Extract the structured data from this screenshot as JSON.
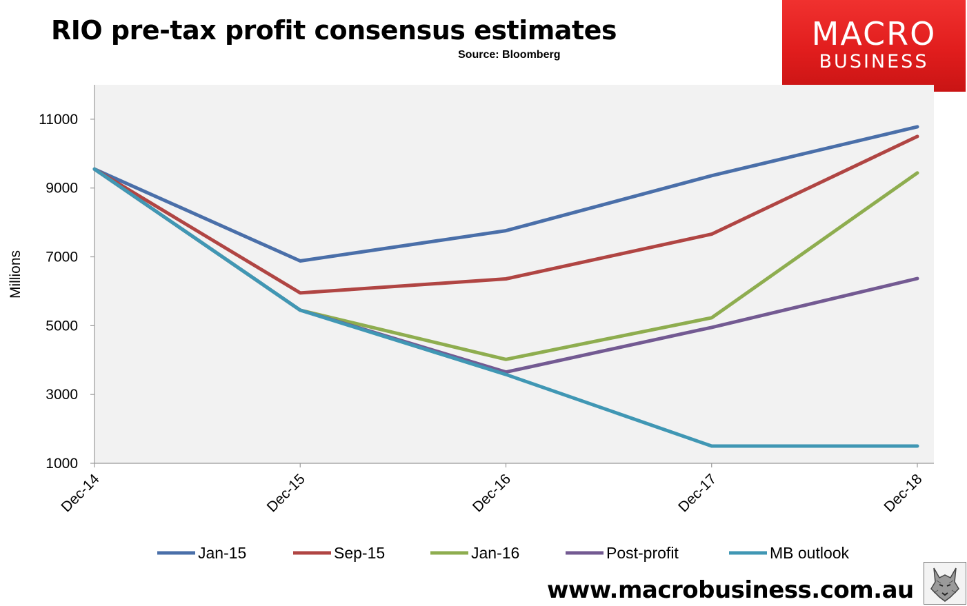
{
  "header": {
    "title": "RIO pre-tax profit consensus estimates",
    "source": "Source: Bloomberg"
  },
  "logo": {
    "line1": "MACRO",
    "line2": "BUSINESS"
  },
  "footer": {
    "url": "www.macrobusiness.com.au"
  },
  "chart_data": {
    "type": "line",
    "title": "RIO pre-tax profit consensus estimates",
    "xlabel": "",
    "ylabel": "Millions",
    "categories": [
      "Dec-14",
      "Dec-15",
      "Dec-16",
      "Dec-17",
      "Dec-18"
    ],
    "ylim": [
      1000,
      12000
    ],
    "yticks": [
      1000,
      3000,
      5000,
      7000,
      9000,
      11000
    ],
    "grid": false,
    "legend_position": "bottom",
    "series": [
      {
        "name": "Jan-15",
        "color": "#4a6fa9",
        "values": [
          9550,
          6880,
          7760,
          9360,
          10780
        ]
      },
      {
        "name": "Sep-15",
        "color": "#b04543",
        "values": [
          9550,
          5950,
          6360,
          7660,
          10500
        ]
      },
      {
        "name": "Jan-16",
        "color": "#8ead4f",
        "values": [
          9550,
          5450,
          4020,
          5230,
          9440
        ]
      },
      {
        "name": "Post-profit",
        "color": "#735a92",
        "values": [
          9550,
          5450,
          3650,
          4950,
          6370
        ]
      },
      {
        "name": "MB outlook",
        "color": "#4097b4",
        "values": [
          9550,
          5450,
          3580,
          1500,
          1500
        ]
      }
    ]
  }
}
